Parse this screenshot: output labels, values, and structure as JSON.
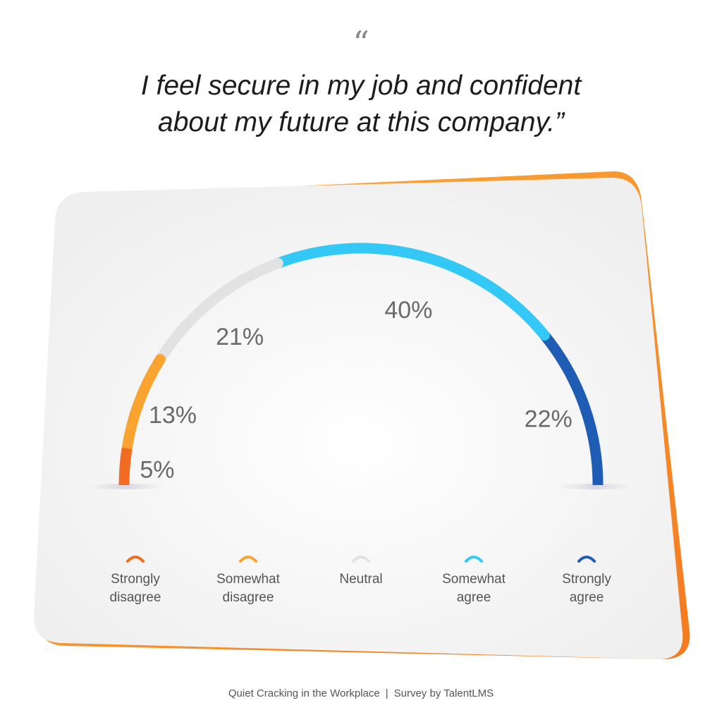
{
  "quote_mark": "“",
  "title_lines": [
    "I feel secure in my job and confident",
    "about my future at this company.”"
  ],
  "chart_data": {
    "type": "gauge",
    "unit": "%",
    "categories": [
      "Strongly disagree",
      "Somewhat disagree",
      "Neutral",
      "Somewhat agree",
      "Strongly agree"
    ],
    "values": [
      5,
      13,
      21,
      40,
      22
    ],
    "value_labels": [
      "5%",
      "13%",
      "21%",
      "40%",
      "22%"
    ],
    "legend_lines": [
      [
        "Strongly",
        "disagree"
      ],
      [
        "Somewhat",
        "disagree"
      ],
      [
        "Neutral"
      ],
      [
        "Somewhat",
        "agree"
      ],
      [
        "Strongly",
        "agree"
      ]
    ],
    "colors": [
      "#f26b22",
      "#f9a431",
      "#e2e2e2",
      "#33c8f5",
      "#1f5cb3"
    ],
    "legend_placement": "bottom"
  },
  "footer": {
    "left": "Quiet Cracking in the Workplace",
    "separator": "|",
    "right": "Survey by TalentLMS"
  },
  "colors": {
    "frame_orange": "#f58a1f",
    "card_bg": "#f3f3f3",
    "label_text": "#6a6a6a"
  }
}
